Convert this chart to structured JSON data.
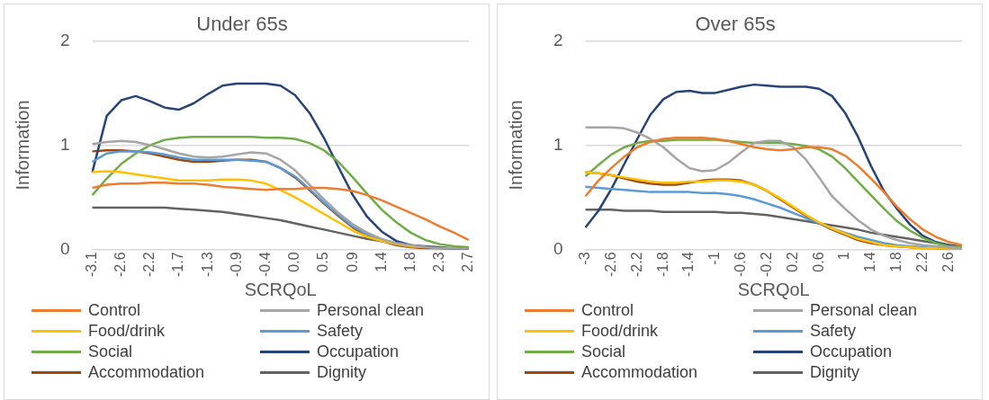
{
  "chart_data": [
    {
      "type": "line",
      "title": "Under 65s",
      "xlabel": "SCRQoL",
      "ylabel": "Information",
      "ylim": [
        0,
        2
      ],
      "yticks": [
        0,
        1,
        2
      ],
      "grid": "y",
      "legend": "bottom",
      "marker": "none",
      "line_style": "solid",
      "categories": [
        "-3.1",
        null,
        "-2.6",
        null,
        "-2.2",
        null,
        "-1.7",
        null,
        "-1.3",
        null,
        "-0.9",
        null,
        "-0.4",
        null,
        "0.0",
        null,
        "0.5",
        null,
        "0.9",
        null,
        "1.4",
        null,
        "1.8",
        null,
        "2.3",
        null,
        "2.7"
      ],
      "series": [
        {
          "name": "Control",
          "color": "#ed7d31",
          "values": [
            0.59,
            0.62,
            0.63,
            0.63,
            0.64,
            0.64,
            0.63,
            0.63,
            0.62,
            0.6,
            0.59,
            0.58,
            0.57,
            0.58,
            0.58,
            0.59,
            0.59,
            0.58,
            0.56,
            0.52,
            0.47,
            0.41,
            0.35,
            0.29,
            0.22,
            0.16,
            0.09
          ]
        },
        {
          "name": "Personal clean",
          "color": "#a5a5a5",
          "values": [
            1.01,
            1.03,
            1.04,
            1.03,
            1.0,
            0.96,
            0.92,
            0.89,
            0.88,
            0.89,
            0.91,
            0.93,
            0.92,
            0.86,
            0.76,
            0.62,
            0.48,
            0.35,
            0.24,
            0.16,
            0.1,
            0.06,
            0.04,
            0.02,
            0.01,
            0.01,
            0.0
          ]
        },
        {
          "name": "Food/drink",
          "color": "#ffc000",
          "values": [
            0.74,
            0.75,
            0.74,
            0.72,
            0.7,
            0.68,
            0.66,
            0.66,
            0.66,
            0.67,
            0.67,
            0.66,
            0.63,
            0.57,
            0.5,
            0.42,
            0.34,
            0.26,
            0.18,
            0.12,
            0.08,
            0.05,
            0.03,
            0.02,
            null,
            null,
            null
          ]
        },
        {
          "name": "Safety",
          "color": "#5b9bd5",
          "values": [
            0.84,
            0.92,
            0.94,
            0.94,
            0.93,
            0.91,
            0.88,
            0.86,
            0.86,
            0.86,
            0.86,
            0.85,
            0.84,
            0.78,
            0.7,
            0.58,
            0.45,
            0.33,
            0.22,
            0.14,
            0.09,
            0.05,
            0.03,
            0.02,
            null,
            null,
            null
          ]
        },
        {
          "name": "Social",
          "color": "#70ad47",
          "values": [
            0.52,
            0.68,
            0.82,
            0.92,
            1.0,
            1.05,
            1.07,
            1.08,
            1.08,
            1.08,
            1.08,
            1.08,
            1.07,
            1.07,
            1.06,
            1.02,
            0.95,
            0.84,
            0.69,
            0.53,
            0.38,
            0.26,
            0.16,
            0.09,
            0.05,
            0.03,
            0.02
          ]
        },
        {
          "name": "Occupation",
          "color": "#264478",
          "values": [
            0.74,
            1.28,
            1.43,
            1.47,
            1.42,
            1.36,
            1.34,
            1.4,
            1.49,
            1.57,
            1.59,
            1.59,
            1.59,
            1.57,
            1.48,
            1.31,
            1.07,
            0.79,
            0.52,
            0.31,
            0.17,
            0.08,
            0.04,
            0.02,
            0.01,
            0.01,
            0.0
          ]
        },
        {
          "name": "Accommodation",
          "color": "#9e480e",
          "values": [
            0.94,
            0.95,
            0.95,
            0.94,
            0.92,
            0.89,
            0.86,
            0.84,
            0.84,
            0.85,
            0.86,
            0.86,
            0.84,
            0.78,
            0.69,
            0.57,
            0.44,
            0.32,
            0.21,
            0.13,
            0.08,
            0.04,
            0.02,
            0.01,
            0.01,
            0.0,
            0.0
          ]
        },
        {
          "name": "Dignity",
          "color": "#636363",
          "values": [
            0.4,
            0.4,
            0.4,
            0.4,
            0.4,
            0.4,
            0.39,
            0.38,
            0.37,
            0.36,
            0.34,
            0.32,
            0.3,
            0.28,
            0.25,
            0.22,
            0.19,
            0.16,
            0.13,
            0.1,
            0.08,
            0.06,
            0.04,
            0.03,
            0.02,
            0.01,
            0.01
          ]
        }
      ]
    },
    {
      "type": "line",
      "title": "Over 65s",
      "xlabel": "SCRQoL",
      "ylabel": "Information",
      "ylim": [
        0,
        2
      ],
      "yticks": [
        0,
        1,
        2
      ],
      "grid": "y",
      "legend": "bottom",
      "marker": "none",
      "line_style": "solid",
      "categories": [
        "-3",
        null,
        "-2.6",
        null,
        "-2.2",
        null,
        "-1.8",
        null,
        "-1.4",
        null,
        "-1",
        null,
        "-0.6",
        null,
        "-0.2",
        null,
        "0.2",
        null,
        "0.6",
        null,
        "1",
        null,
        "1.4",
        null,
        "1.8",
        null,
        "2.2",
        null,
        "2.6",
        null
      ],
      "series": [
        {
          "name": "Control",
          "color": "#ed7d31",
          "values": [
            0.51,
            0.66,
            0.78,
            0.89,
            0.98,
            1.03,
            1.06,
            1.07,
            1.07,
            1.07,
            1.06,
            1.04,
            1.01,
            0.98,
            0.96,
            0.95,
            0.96,
            0.98,
            0.98,
            0.96,
            0.9,
            0.8,
            0.68,
            0.55,
            0.41,
            0.29,
            0.19,
            0.12,
            0.07,
            0.04
          ]
        },
        {
          "name": "Personal clean",
          "color": "#a5a5a5",
          "values": [
            1.17,
            1.17,
            1.17,
            1.16,
            1.12,
            1.06,
            0.98,
            0.87,
            0.78,
            0.75,
            0.76,
            0.83,
            0.93,
            1.02,
            1.04,
            1.04,
            0.98,
            0.86,
            0.69,
            0.51,
            0.39,
            0.28,
            0.19,
            0.13,
            0.09,
            0.06,
            0.04,
            0.03,
            0.02,
            0.01
          ]
        },
        {
          "name": "Food/drink",
          "color": "#ffc000",
          "values": [
            0.74,
            0.73,
            0.71,
            0.69,
            0.67,
            0.65,
            0.64,
            0.64,
            0.65,
            0.65,
            0.66,
            0.66,
            0.65,
            0.62,
            0.56,
            0.49,
            0.41,
            0.33,
            0.26,
            0.2,
            0.15,
            0.1,
            0.07,
            0.04,
            0.03,
            0.02,
            0.01,
            0.01,
            0.0,
            0.0
          ]
        },
        {
          "name": "Safety",
          "color": "#5b9bd5",
          "values": [
            0.6,
            0.59,
            0.58,
            0.57,
            0.56,
            0.55,
            0.55,
            0.55,
            0.55,
            0.54,
            0.54,
            0.53,
            0.51,
            0.48,
            0.44,
            0.4,
            0.35,
            0.3,
            0.25,
            0.2,
            0.16,
            0.12,
            0.09,
            0.06,
            0.04,
            0.03,
            0.02,
            0.01,
            0.01,
            0.0
          ]
        },
        {
          "name": "Social",
          "color": "#70ad47",
          "values": [
            0.7,
            0.81,
            0.91,
            0.98,
            1.02,
            1.04,
            1.04,
            1.05,
            1.05,
            1.05,
            1.05,
            1.04,
            1.03,
            1.02,
            1.02,
            1.02,
            1.01,
            0.99,
            0.96,
            0.89,
            0.78,
            0.65,
            0.52,
            0.39,
            0.27,
            0.18,
            0.11,
            0.06,
            0.03,
            0.02
          ]
        },
        {
          "name": "Occupation",
          "color": "#264478",
          "values": [
            0.21,
            0.37,
            0.58,
            0.82,
            1.06,
            1.29,
            1.44,
            1.51,
            1.52,
            1.5,
            1.5,
            1.53,
            1.56,
            1.58,
            1.57,
            1.56,
            1.56,
            1.56,
            1.54,
            1.47,
            1.31,
            1.08,
            0.8,
            0.56,
            0.39,
            0.24,
            0.13,
            0.07,
            0.04,
            0.01
          ]
        },
        {
          "name": "Accommodation",
          "color": "#9e480e",
          "values": [
            0.74,
            0.73,
            0.71,
            0.68,
            0.65,
            0.63,
            0.62,
            0.62,
            0.64,
            0.66,
            0.67,
            0.67,
            0.66,
            0.62,
            0.56,
            0.48,
            0.4,
            0.32,
            0.25,
            0.19,
            0.14,
            0.09,
            0.06,
            0.04,
            0.03,
            0.02,
            0.01,
            0.01,
            0.0,
            0.0
          ]
        },
        {
          "name": "Dignity",
          "color": "#636363",
          "values": [
            0.38,
            0.38,
            0.38,
            0.37,
            0.37,
            0.37,
            0.36,
            0.36,
            0.36,
            0.36,
            0.36,
            0.35,
            0.35,
            0.34,
            0.33,
            0.31,
            0.29,
            0.27,
            0.25,
            0.23,
            0.21,
            0.19,
            0.16,
            0.14,
            0.12,
            0.1,
            0.08,
            0.06,
            0.04,
            0.03
          ]
        }
      ]
    }
  ]
}
